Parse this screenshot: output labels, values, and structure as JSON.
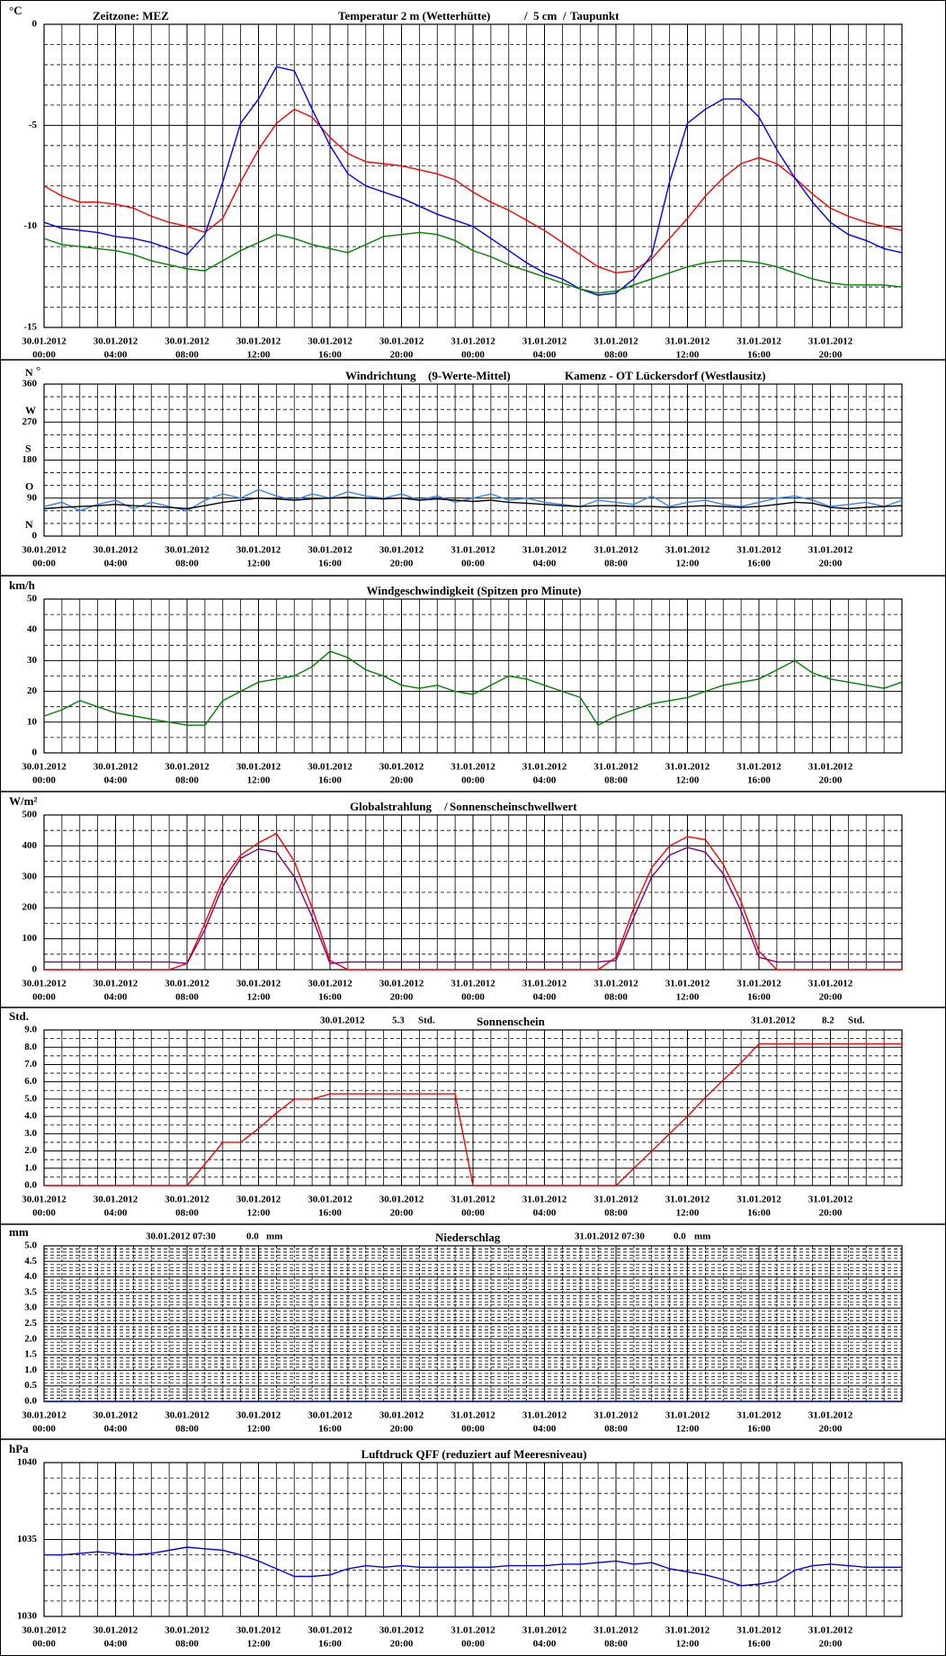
{
  "time_axis": {
    "xlim": [
      0,
      48
    ],
    "x": [
      0,
      1,
      2,
      3,
      4,
      5,
      6,
      7,
      8,
      9,
      10,
      11,
      12,
      13,
      14,
      15,
      16,
      17,
      18,
      19,
      20,
      21,
      22,
      23,
      24,
      25,
      26,
      27,
      28,
      29,
      30,
      31,
      32,
      33,
      34,
      35,
      36,
      37,
      38,
      39,
      40,
      41,
      42,
      43,
      44,
      45,
      46,
      47,
      48
    ],
    "xticks": [
      {
        "value": 0,
        "label": "00:00"
      },
      {
        "value": 4,
        "label": "04:00"
      },
      {
        "value": 8,
        "label": "08:00"
      },
      {
        "value": 12,
        "label": "12:00"
      },
      {
        "value": 16,
        "label": "16:00"
      },
      {
        "value": 20,
        "label": "20:00"
      },
      {
        "value": 24,
        "label": "00:00"
      },
      {
        "value": 28,
        "label": "04:00"
      },
      {
        "value": 32,
        "label": "08:00"
      },
      {
        "value": 36,
        "label": "12:00"
      },
      {
        "value": 40,
        "label": "16:00"
      },
      {
        "value": 44,
        "label": "20:00"
      }
    ],
    "xtick_dates": [
      "30.01.2012",
      "30.01.2012",
      "30.01.2012",
      "30.01.2012",
      "30.01.2012",
      "30.01.2012",
      "31.01.2012",
      "31.01.2012",
      "31.01.2012",
      "31.01.2012",
      "31.01.2012",
      "31.01.2012"
    ],
    "minor_xticks": [
      1,
      2,
      3,
      5,
      6,
      7,
      9,
      10,
      11,
      13,
      14,
      15,
      17,
      18,
      19,
      21,
      22,
      23,
      25,
      26,
      27,
      29,
      30,
      31,
      33,
      34,
      35,
      37,
      38,
      39,
      41,
      42,
      43,
      45,
      46,
      47
    ]
  },
  "chart_data": [
    {
      "type": "line",
      "ylabel": "°C",
      "timezone": "Zeitzone: MEZ",
      "legend_separator": "/",
      "ylim": [
        -15,
        0
      ],
      "yticks": [
        -15,
        -10,
        -5,
        0
      ],
      "minor_yticks": [
        -14,
        -13,
        -12,
        -11,
        -9,
        -8,
        -7,
        -6,
        -4,
        -3,
        -2,
        -1
      ],
      "series": [
        {
          "name": "Temperatur 2 m (Wetterhütte)",
          "color": "#ff0000",
          "values": [
            -8.0,
            -8.5,
            -8.8,
            -8.8,
            -8.9,
            -9.1,
            -9.5,
            -9.8,
            -10.0,
            -10.3,
            -9.6,
            -7.8,
            -6.2,
            -4.9,
            -4.2,
            -4.6,
            -5.6,
            -6.4,
            -6.8,
            -6.9,
            -7.0,
            -7.2,
            -7.4,
            -7.7,
            -8.3,
            -8.8,
            -9.2,
            -9.7,
            -10.2,
            -10.8,
            -11.4,
            -12.0,
            -12.3,
            -12.2,
            -11.6,
            -10.6,
            -9.6,
            -8.5,
            -7.6,
            -6.9,
            -6.6,
            -6.9,
            -7.6,
            -8.4,
            -9.1,
            -9.5,
            -9.8,
            -10.0,
            -10.2
          ]
        },
        {
          "name": "5 cm",
          "color": "#0000ff",
          "values": [
            -9.8,
            -10.1,
            -10.2,
            -10.3,
            -10.5,
            -10.6,
            -10.8,
            -11.1,
            -11.4,
            -10.4,
            -7.8,
            -4.9,
            -3.7,
            -2.1,
            -2.3,
            -4.2,
            -6.0,
            -7.4,
            -8.0,
            -8.3,
            -8.6,
            -9.0,
            -9.4,
            -9.7,
            -10.0,
            -10.6,
            -11.2,
            -11.8,
            -12.3,
            -12.6,
            -13.1,
            -13.4,
            -13.3,
            -12.6,
            -11.4,
            -7.8,
            -4.9,
            -4.2,
            -3.7,
            -3.7,
            -4.6,
            -6.2,
            -7.6,
            -8.8,
            -9.8,
            -10.4,
            -10.7,
            -11.1,
            -11.3
          ]
        },
        {
          "name": "Taupunkt",
          "color": "#008000",
          "values": [
            -10.6,
            -10.9,
            -11.0,
            -11.1,
            -11.2,
            -11.4,
            -11.7,
            -11.9,
            -12.1,
            -12.2,
            -11.7,
            -11.2,
            -10.8,
            -10.4,
            -10.6,
            -10.9,
            -11.1,
            -11.3,
            -10.9,
            -10.5,
            -10.4,
            -10.3,
            -10.4,
            -10.7,
            -11.2,
            -11.5,
            -11.9,
            -12.2,
            -12.5,
            -12.8,
            -13.1,
            -13.3,
            -13.2,
            -12.9,
            -12.6,
            -12.3,
            -12.0,
            -11.8,
            -11.7,
            -11.7,
            -11.8,
            -12.0,
            -12.3,
            -12.6,
            -12.8,
            -12.9,
            -12.9,
            -12.9,
            -13.0
          ]
        }
      ]
    },
    {
      "type": "line",
      "ylabel": "°",
      "station": "Kamenz - OT Lückersdorf (Westlausitz)",
      "ylim": [
        0,
        360
      ],
      "yticks": [
        0,
        90,
        180,
        270,
        360
      ],
      "minor_yticks": [
        30,
        60,
        120,
        150,
        210,
        240,
        300,
        330
      ],
      "direction_labels": [
        {
          "value": 0,
          "label": "N"
        },
        {
          "value": 90,
          "label": "O"
        },
        {
          "value": 180,
          "label": "S"
        },
        {
          "value": 270,
          "label": "W"
        },
        {
          "value": 360,
          "label": "N"
        }
      ],
      "series": [
        {
          "name": "Windrichtung",
          "color": "#3b82f0",
          "values": [
            70,
            80,
            60,
            75,
            85,
            65,
            80,
            70,
            60,
            85,
            100,
            90,
            110,
            95,
            85,
            100,
            90,
            105,
            95,
            90,
            100,
            85,
            95,
            80,
            90,
            100,
            85,
            90,
            80,
            75,
            70,
            85,
            80,
            75,
            95,
            70,
            80,
            85,
            75,
            70,
            80,
            90,
            95,
            85,
            70,
            75,
            80,
            70,
            85
          ]
        },
        {
          "name": "(9-Werte-Mittel)",
          "color": "#000000",
          "values": [
            65,
            68,
            70,
            72,
            75,
            72,
            70,
            68,
            65,
            72,
            80,
            85,
            90,
            88,
            85,
            88,
            90,
            92,
            90,
            88,
            90,
            85,
            88,
            85,
            82,
            85,
            80,
            78,
            75,
            72,
            70,
            72,
            72,
            70,
            70,
            68,
            70,
            72,
            70,
            68,
            70,
            75,
            80,
            78,
            68,
            65,
            68,
            70,
            72
          ]
        }
      ]
    },
    {
      "type": "line",
      "ylabel": "km/h",
      "title": "Windgeschwindigkeit (Spitzen pro Minute)",
      "ylim": [
        0,
        50
      ],
      "yticks": [
        0,
        10,
        20,
        30,
        40,
        50
      ],
      "minor_yticks": [
        5,
        15,
        25,
        35,
        45
      ],
      "series": [
        {
          "name": "Windgeschwindigkeit",
          "color": "#008000",
          "values": [
            12,
            14,
            17,
            15,
            13,
            12,
            11,
            10,
            9,
            9,
            17,
            20,
            23,
            24,
            25,
            28,
            33,
            31,
            27,
            25,
            22,
            21,
            22,
            20,
            19,
            22,
            25,
            24,
            22,
            20,
            18,
            9,
            12,
            14,
            16,
            17,
            18,
            20,
            22,
            23,
            24,
            27,
            30,
            26,
            24,
            23,
            22,
            21,
            23
          ]
        }
      ]
    },
    {
      "type": "line",
      "ylabel": "W/m²",
      "legend_separator": "/",
      "ylim": [
        0,
        500
      ],
      "yticks": [
        0,
        100,
        200,
        300,
        400,
        500
      ],
      "minor_yticks": [
        50,
        150,
        250,
        350,
        450
      ],
      "series": [
        {
          "name": "Globalstrahlung",
          "color": "#ff0000",
          "values": [
            0,
            0,
            0,
            0,
            0,
            0,
            0,
            0,
            20,
            150,
            290,
            370,
            410,
            440,
            350,
            200,
            30,
            0,
            0,
            0,
            0,
            0,
            0,
            0,
            0,
            0,
            0,
            0,
            0,
            0,
            0,
            0,
            40,
            200,
            330,
            400,
            430,
            420,
            340,
            220,
            60,
            0,
            0,
            0,
            0,
            0,
            0,
            0,
            0
          ]
        },
        {
          "name": "Sonnenscheinschwellwert",
          "color": "#800080",
          "values": [
            25,
            25,
            25,
            25,
            25,
            25,
            25,
            25,
            20,
            130,
            270,
            360,
            390,
            380,
            300,
            170,
            20,
            25,
            25,
            25,
            25,
            25,
            25,
            25,
            25,
            25,
            25,
            25,
            25,
            25,
            25,
            25,
            30,
            170,
            300,
            370,
            395,
            380,
            310,
            190,
            40,
            25,
            25,
            25,
            25,
            25,
            25,
            25,
            25
          ]
        }
      ]
    },
    {
      "type": "line",
      "ylabel": "Std.",
      "title": "Sonnenschein",
      "summaries": [
        {
          "date": "30.01.2012",
          "total": "5.3",
          "unit": "Std."
        },
        {
          "date": "31.01.2012",
          "total": "8.2",
          "unit": "Std."
        }
      ],
      "ylim": [
        0,
        9
      ],
      "yticks": [
        {
          "value": 0,
          "label": "0.0"
        },
        {
          "value": 1,
          "label": "1.0"
        },
        {
          "value": 2,
          "label": "2.0"
        },
        {
          "value": 3,
          "label": "3.0"
        },
        {
          "value": 4,
          "label": "4.0"
        },
        {
          "value": 5,
          "label": "5.0"
        },
        {
          "value": 6,
          "label": "6.0"
        },
        {
          "value": 7,
          "label": "7.0"
        },
        {
          "value": 8,
          "label": "8.0"
        },
        {
          "value": 9,
          "label": "9.0"
        }
      ],
      "minor_yticks": [
        0.5,
        1.5,
        2.5,
        3.5,
        4.5,
        5.5,
        6.5,
        7.5,
        8.5
      ],
      "series": [
        {
          "name": "Sonnenschein",
          "color": "#ff0000",
          "values": [
            0,
            0,
            0,
            0,
            0,
            0,
            0,
            0,
            0,
            1.25,
            2.5,
            2.5,
            3.3,
            4.2,
            5.0,
            5.0,
            5.3,
            5.3,
            5.3,
            5.3,
            5.3,
            5.3,
            5.3,
            5.3,
            0,
            0,
            0,
            0,
            0,
            0,
            0,
            0,
            0,
            1.0,
            2.0,
            3.0,
            4.0,
            5.1,
            6.1,
            7.1,
            8.2,
            8.2,
            8.2,
            8.2,
            8.2,
            8.2,
            8.2,
            8.2,
            8.2
          ]
        }
      ]
    },
    {
      "type": "line",
      "ylabel": "mm",
      "title": "Niederschlag",
      "summaries": [
        {
          "date": "30.01.2012 07:30",
          "total": "0.0",
          "unit": "mm"
        },
        {
          "date": "31.01.2012 07:30",
          "total": "0.0",
          "unit": "mm"
        }
      ],
      "ylim": [
        0,
        5
      ],
      "yticks": [
        {
          "value": 0,
          "label": "0.0"
        },
        {
          "value": 0.5,
          "label": "0.5"
        },
        {
          "value": 1,
          "label": "1.0"
        },
        {
          "value": 1.5,
          "label": "1.5"
        },
        {
          "value": 2,
          "label": "2.0"
        },
        {
          "value": 2.5,
          "label": "2.5"
        },
        {
          "value": 3,
          "label": "3.0"
        },
        {
          "value": 3.5,
          "label": "3.5"
        },
        {
          "value": 4,
          "label": "4.0"
        },
        {
          "value": 4.5,
          "label": "4.5"
        },
        {
          "value": 5,
          "label": "5.0"
        }
      ],
      "minor_yticks": [
        0.1,
        0.2,
        0.3,
        0.4,
        0.6,
        0.7,
        0.8,
        0.9,
        1.1,
        1.2,
        1.3,
        1.4,
        1.6,
        1.7,
        1.8,
        1.9,
        2.1,
        2.2,
        2.3,
        2.4,
        2.6,
        2.7,
        2.8,
        2.9,
        3.1,
        3.2,
        3.3,
        3.4,
        3.6,
        3.7,
        3.8,
        3.9,
        4.1,
        4.2,
        4.3,
        4.4,
        4.6,
        4.7,
        4.8,
        4.9
      ],
      "series": [
        {
          "name": "Niederschlag",
          "color": "#0000ff",
          "values": [
            0,
            0,
            0,
            0,
            0,
            0,
            0,
            0,
            0,
            0,
            0,
            0,
            0,
            0,
            0,
            0,
            0,
            0,
            0,
            0,
            0,
            0,
            0,
            0,
            0,
            0,
            0,
            0,
            0,
            0,
            0,
            0,
            0,
            0,
            0,
            0,
            0,
            0,
            0,
            0,
            0,
            0,
            0,
            0,
            0,
            0,
            0,
            0,
            0
          ]
        }
      ]
    },
    {
      "type": "line",
      "ylabel": "hPa",
      "title": "Luftdruck QFF (reduziert auf Meeresniveau)",
      "ylim": [
        1030,
        1040
      ],
      "yticks": [
        1030,
        1035,
        1040
      ],
      "minor_yticks": [
        1031,
        1032,
        1033,
        1034,
        1036,
        1037,
        1038,
        1039
      ],
      "series": [
        {
          "name": "Luftdruck",
          "color": "#0000ff",
          "values": [
            1034.0,
            1034.0,
            1034.1,
            1034.2,
            1034.1,
            1034.0,
            1034.1,
            1034.3,
            1034.5,
            1034.4,
            1034.3,
            1034.0,
            1033.6,
            1033.1,
            1032.6,
            1032.6,
            1032.7,
            1033.1,
            1033.3,
            1033.2,
            1033.3,
            1033.2,
            1033.2,
            1033.2,
            1033.2,
            1033.2,
            1033.3,
            1033.3,
            1033.3,
            1033.4,
            1033.4,
            1033.5,
            1033.6,
            1033.4,
            1033.5,
            1033.1,
            1032.9,
            1032.7,
            1032.4,
            1032.0,
            1032.1,
            1032.3,
            1033.0,
            1033.3,
            1033.4,
            1033.3,
            1033.2,
            1033.2,
            1033.2
          ]
        }
      ]
    }
  ]
}
